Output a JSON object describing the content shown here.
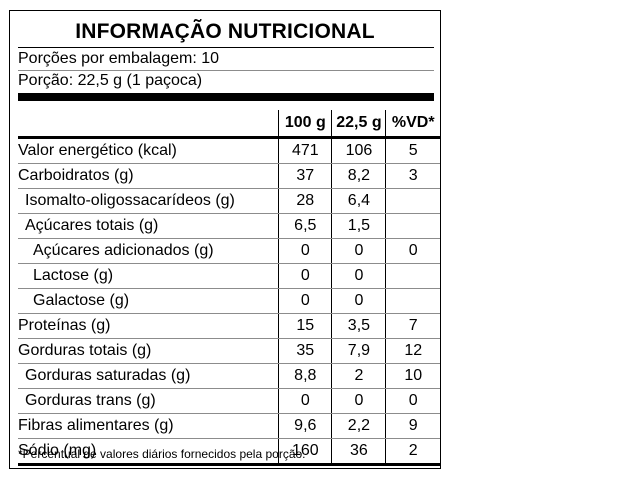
{
  "title": "INFORMAÇÃO NUTRICIONAL",
  "servings_per_package": "Porções por embalagem: 10",
  "serving_size": "Porção: 22,5 g (1 paçoca)",
  "columns": [
    "",
    "100 g",
    "22,5 g",
    "%VD*"
  ],
  "rows": [
    {
      "name": "Valor energético (kcal)",
      "v100": "471",
      "vportion": "106",
      "vd": "5"
    },
    {
      "name": "Carboidratos (g)",
      "v100": "37",
      "vportion": "8,2",
      "vd": "3"
    },
    {
      "name": "Isomalto-oligossacarídeos (g)",
      "v100": "28",
      "vportion": "6,4",
      "vd": ""
    },
    {
      "name": "Açúcares totais (g)",
      "v100": "6,5",
      "vportion": "1,5",
      "vd": ""
    },
    {
      "name": "Açúcares adicionados (g)",
      "v100": "0",
      "vportion": "0",
      "vd": "0"
    },
    {
      "name": "Lactose (g)",
      "v100": "0",
      "vportion": "0",
      "vd": ""
    },
    {
      "name": "Galactose (g)",
      "v100": "0",
      "vportion": "0",
      "vd": ""
    },
    {
      "name": "Proteínas (g)",
      "v100": "15",
      "vportion": "3,5",
      "vd": "7"
    },
    {
      "name": "Gorduras totais (g)",
      "v100": "35",
      "vportion": "7,9",
      "vd": "12"
    },
    {
      "name": "Gorduras saturadas (g)",
      "v100": "8,8",
      "vportion": "2",
      "vd": "10"
    },
    {
      "name": "Gorduras trans (g)",
      "v100": "0",
      "vportion": "0",
      "vd": "0"
    },
    {
      "name": "Fibras alimentares (g)",
      "v100": "9,6",
      "vportion": "2,2",
      "vd": "9"
    },
    {
      "name": "Sódio (mg)",
      "v100": "160",
      "vportion": "36",
      "vd": "2"
    }
  ],
  "footnote": "*Percentual de valores diários fornecidos pela porção."
}
